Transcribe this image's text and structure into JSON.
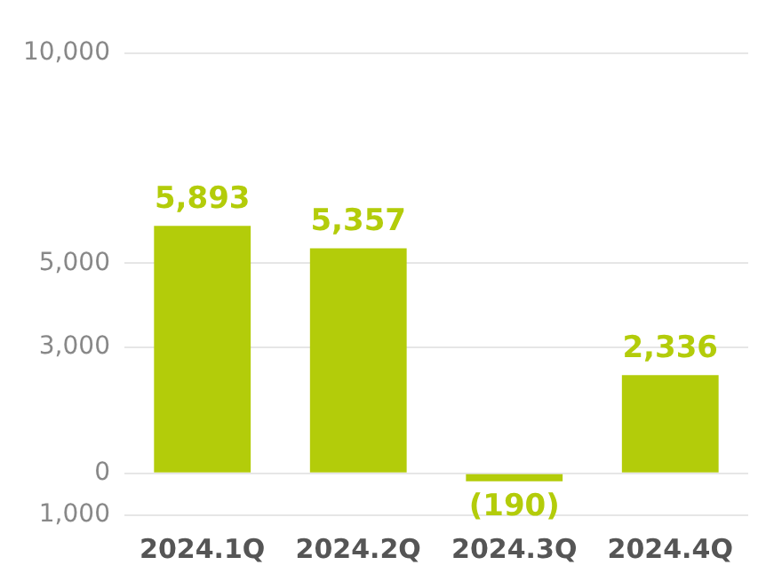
{
  "chart_data": {
    "type": "bar",
    "categories": [
      "2024.1Q",
      "2024.2Q",
      "2024.3Q",
      "2024.4Q"
    ],
    "values": [
      5893,
      5357,
      -190,
      2336
    ],
    "value_labels": [
      "5,893",
      "5,357",
      "(190)",
      "2,336"
    ],
    "color": "#b3cc0a",
    "ylim": [
      -1000,
      10000
    ],
    "yticks": [
      {
        "value": -1000,
        "label": "1,000"
      },
      0,
      {
        "value": 3000,
        "label": "3,000"
      },
      {
        "value": 5000,
        "label": "5,000"
      },
      {
        "value": 10000,
        "label": "10,000"
      }
    ],
    "grid": "y",
    "legend": false
  }
}
